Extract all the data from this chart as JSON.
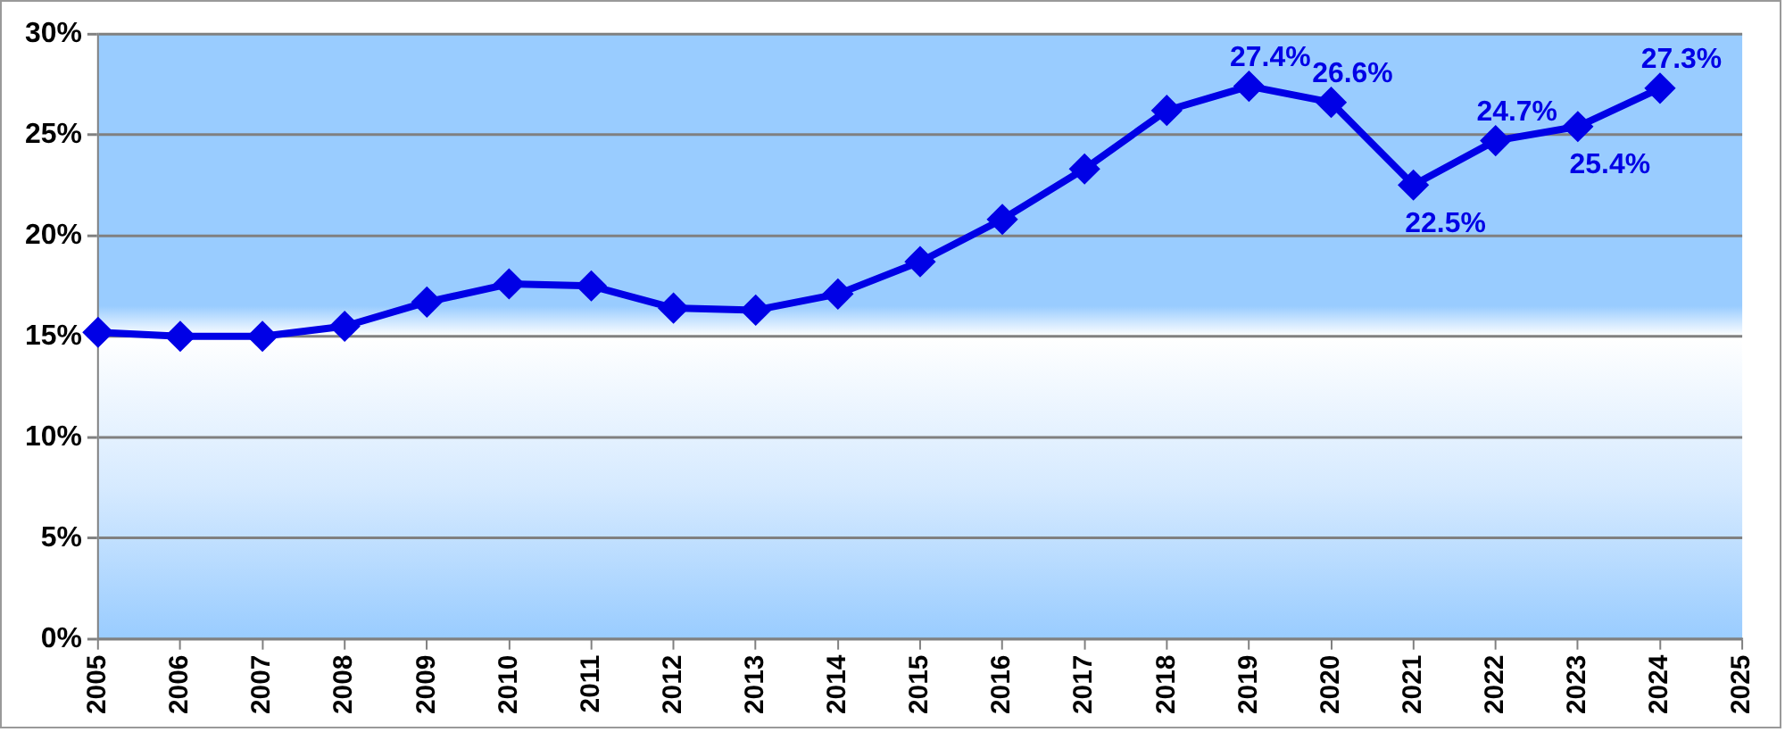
{
  "chart_data": {
    "type": "line",
    "categories": [
      "2005",
      "2006",
      "2007",
      "2008",
      "2009",
      "2010",
      "2011",
      "2012",
      "2013",
      "2014",
      "2015",
      "2016",
      "2017",
      "2018",
      "2019",
      "2020",
      "2021",
      "2022",
      "2023",
      "2024",
      "2025"
    ],
    "series": [
      {
        "color": "#0000e6",
        "values": [
          15.2,
          15.0,
          15.0,
          15.5,
          16.7,
          17.6,
          17.5,
          16.4,
          16.3,
          17.1,
          18.7,
          20.8,
          23.3,
          26.2,
          27.4,
          26.6,
          22.5,
          24.7,
          25.4,
          27.3,
          null
        ],
        "value_labels": [
          null,
          null,
          null,
          null,
          null,
          null,
          null,
          null,
          null,
          null,
          null,
          null,
          null,
          null,
          "27.4%",
          "26.6%",
          "22.5%",
          "24.7%",
          "25.4%",
          "27.3%",
          null
        ]
      }
    ],
    "ylim": [
      0,
      30
    ],
    "yticks": [
      {
        "value": 0,
        "label": "0%"
      },
      {
        "value": 5,
        "label": "5%"
      },
      {
        "value": 10,
        "label": "10%"
      },
      {
        "value": 15,
        "label": "15%"
      },
      {
        "value": 20,
        "label": "20%"
      },
      {
        "value": 25,
        "label": "25%"
      },
      {
        "value": 30,
        "label": "30%"
      }
    ],
    "grid": "y",
    "marker": "diamond",
    "line_style": "solid",
    "legend": false
  }
}
